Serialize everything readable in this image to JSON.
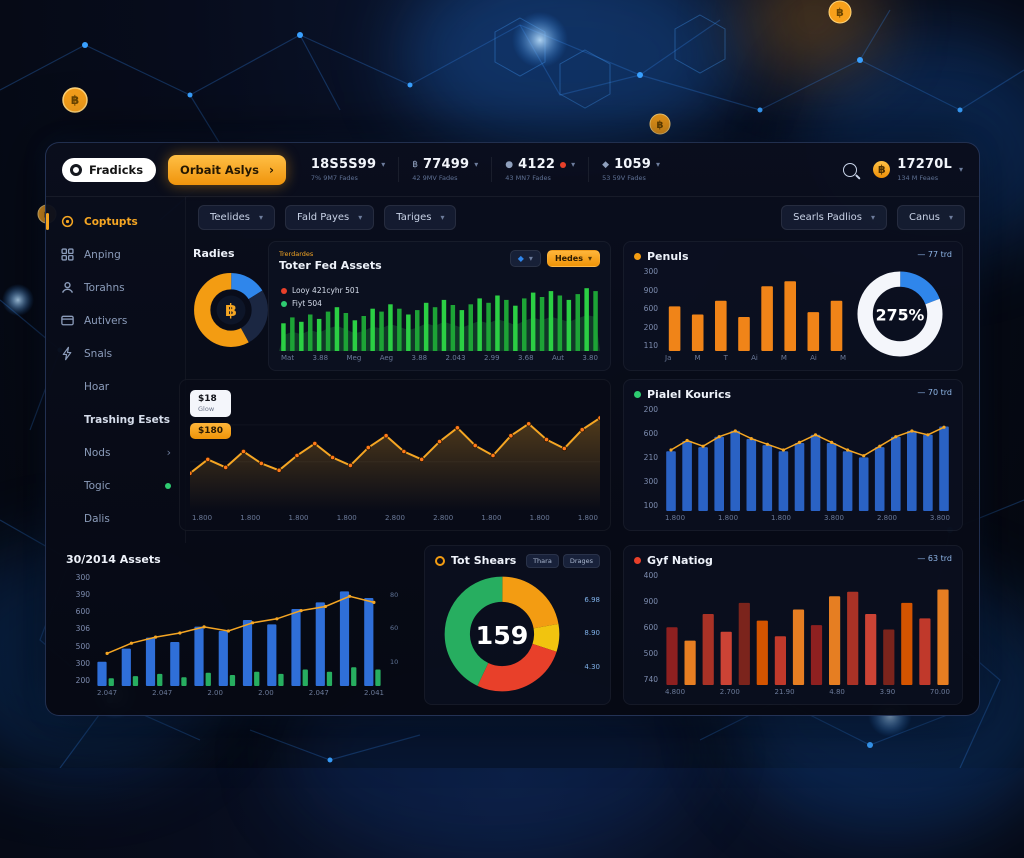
{
  "header": {
    "brand": "Fradicks",
    "primary_action": "Orbait Aslys",
    "tickers": [
      {
        "value": "18S5S99",
        "sub": "7% 9M7 Fades"
      },
      {
        "value": "77499",
        "sub": "42 9MV Fades",
        "icon": "฿"
      },
      {
        "value": "4122",
        "sub": "43 MN7 Fades",
        "icon": "●",
        "dot": "#e8402a"
      },
      {
        "value": "1059",
        "sub": "53 59V Fades",
        "icon": "◆"
      }
    ],
    "balance": {
      "value": "17270L",
      "sub": "134 M Feaes"
    }
  },
  "sidebar": {
    "items": [
      {
        "label": "Coptupts",
        "icon": "target-icon",
        "active": true
      },
      {
        "label": "Anping",
        "icon": "grid-icon"
      },
      {
        "label": "Torahns",
        "icon": "user-icon"
      },
      {
        "label": "Autivers",
        "icon": "card-icon"
      },
      {
        "label": "Snals",
        "icon": "bolt-icon"
      },
      {
        "label": "Hoar"
      },
      {
        "label": "Trashing Esets",
        "section": true
      },
      {
        "label": "Nods",
        "chevron": true
      },
      {
        "label": "Togic",
        "dot": "#2ecc71"
      },
      {
        "label": "Dalis"
      }
    ]
  },
  "filters": {
    "left": [
      "Teelides",
      "Fald Payes",
      "Tariges"
    ],
    "right": [
      "Searls Padlios",
      "Canus"
    ]
  },
  "panels": {
    "radies": {
      "title": "Radies"
    },
    "total_assets": {
      "tag": "Trerdardes",
      "title": "Toter Fed Assets",
      "legend": [
        {
          "label": "Looy 421cyhr 501",
          "color": "#e8402a"
        },
        {
          "label": "Fiyt 504",
          "color": "#2ecc71"
        }
      ],
      "controls": {
        "button": "Hedes"
      }
    },
    "penuls": {
      "title": "Penuls",
      "dot": "#f39c12",
      "badge": "— 77 trd"
    },
    "main_chart": {
      "badge_top": "$18",
      "badge_top_sub": "Glow",
      "badge_orange": "$180"
    },
    "pialel": {
      "title": "Pialel Kourics",
      "dot": "#2ecc71",
      "badge": "— 70 trd"
    },
    "bottom_assets": {
      "title": "30/2014 Assets"
    },
    "tot_shears": {
      "title": "Tot Shears",
      "tabs": [
        "Thara",
        "Drages"
      ],
      "side_values": [
        "6.98",
        "8.90",
        "4.30"
      ]
    },
    "gyf": {
      "title": "Gyf Natiog",
      "dot": "#e8402a",
      "badge": "— 63 trd"
    }
  },
  "chart_data": {
    "radies": {
      "type": "donut",
      "thickness": 9,
      "center_icon": "btc",
      "segments": [
        {
          "value": 16,
          "color": "#2f86eb"
        },
        {
          "value": 26,
          "color": "#1b2742"
        },
        {
          "value": 58,
          "color": "#f39c12"
        }
      ]
    },
    "total_assets": {
      "type": "candle",
      "color_a": "#2bcf44",
      "color_b": "#1da336",
      "area_color": "rgba(32,150,64,0.30)",
      "values": [
        38,
        46,
        40,
        50,
        44,
        54,
        60,
        52,
        42,
        48,
        58,
        54,
        64,
        58,
        50,
        56,
        66,
        60,
        70,
        63,
        56,
        64,
        72,
        66,
        76,
        70,
        62,
        72,
        80,
        74,
        82,
        76,
        70,
        78,
        86,
        82
      ],
      "xlabels": [
        "Mat",
        "3.88",
        "Meg",
        "Aeg",
        "3.88",
        "2.043",
        "2.99",
        "3.68",
        "Aut",
        "3.80"
      ]
    },
    "penuls": {
      "type": "bar",
      "color": "#f08418",
      "ratio": 0.5,
      "values": [
        55,
        45,
        62,
        42,
        80,
        86,
        48,
        62
      ],
      "ticks": [
        "300",
        "900",
        "600",
        "200",
        "110"
      ],
      "xlabels": [
        "Ja",
        "M",
        "T",
        "Ai",
        "M",
        "Ai",
        "M"
      ]
    },
    "penuls_gauge": {
      "type": "donut",
      "thickness": 7,
      "center": "275%",
      "segments": [
        {
          "value": 19,
          "color": "#2f86eb"
        },
        {
          "value": 81,
          "color": "#f4f6fb"
        }
      ]
    },
    "main_line": {
      "type": "line",
      "color": "#f5a623",
      "marker": "#ff7a1a",
      "fill_from": "rgba(245,166,35,0.30)",
      "fill_to": "rgba(245,166,35,0)",
      "values": [
        30,
        44,
        36,
        52,
        40,
        33,
        48,
        60,
        46,
        38,
        56,
        68,
        52,
        44,
        62,
        76,
        58,
        48,
        68,
        80,
        64,
        55,
        74,
        86
      ],
      "xlabels": [
        "1.800",
        "1.800",
        "1.800",
        "1.800",
        "2.800",
        "2.800",
        "1.800",
        "1.800",
        "1.800"
      ]
    },
    "pialel": {
      "type": "bar",
      "color": "#2a62c4",
      "ratio": 0.6,
      "values": [
        58,
        68,
        62,
        72,
        78,
        70,
        64,
        58,
        66,
        74,
        66,
        58,
        52,
        62,
        72,
        78,
        74,
        82
      ],
      "line": {
        "color": "#f5a623",
        "values": [
          60,
          70,
          64,
          74,
          80,
          72,
          66,
          60,
          68,
          76,
          68,
          60,
          54,
          64,
          74,
          80,
          76,
          84
        ]
      },
      "ticks": [
        "200",
        "600",
        "210",
        "300",
        "100"
      ],
      "xlabels": [
        "1.800",
        "1.800",
        "1.800",
        "3.800",
        "2.800",
        "3.800"
      ]
    },
    "bottom_assets": {
      "type": "bar2",
      "series": [
        {
          "color": "#2f6fd8",
          "values": [
            22,
            34,
            44,
            40,
            54,
            50,
            60,
            56,
            70,
            76,
            86,
            80
          ]
        },
        {
          "color": "#27ae60",
          "values": [
            7,
            9,
            11,
            8,
            12,
            10,
            13,
            11,
            15,
            13,
            17,
            15
          ]
        }
      ],
      "line": {
        "color": "#f5a623",
        "values": [
          28,
          38,
          44,
          48,
          54,
          50,
          58,
          62,
          70,
          74,
          84,
          78
        ]
      },
      "ticks": [
        "300",
        "390",
        "600",
        "306",
        "500",
        "300",
        "200"
      ],
      "right_ticks": [
        "80",
        "60",
        "10"
      ],
      "xlabels": [
        "2.047",
        "2.047",
        "2.00",
        "2.00",
        "2.047",
        "2.041"
      ]
    },
    "tot_shears": {
      "type": "donut",
      "thickness": 9,
      "center": "159",
      "segments": [
        {
          "value": 22,
          "color": "#f39c12"
        },
        {
          "value": 8,
          "color": "#f1c40f"
        },
        {
          "value": 27,
          "color": "#e8402a"
        },
        {
          "value": 43,
          "color": "#27ae60"
        }
      ]
    },
    "gyf": {
      "type": "bar",
      "ratio": 0.62,
      "colors": [
        "#8e2020",
        "#e67e22",
        "#a93226",
        "#cb4335",
        "#7b241c",
        "#d35400",
        "#c0392b",
        "#e67e22"
      ],
      "values": [
        52,
        40,
        64,
        48,
        74,
        58,
        44,
        68,
        54,
        80,
        84,
        64,
        50,
        74,
        60,
        86
      ],
      "ticks": [
        "400",
        "900",
        "600",
        "500",
        "740"
      ],
      "xlabels": [
        "4.800",
        "2.700",
        "21.90",
        "4.80",
        "3.90",
        "70.00"
      ]
    }
  },
  "colors": {
    "accent_orange": "#f5a623",
    "accent_blue": "#2f86eb",
    "positive": "#2ecc71",
    "negative": "#e8402a"
  }
}
